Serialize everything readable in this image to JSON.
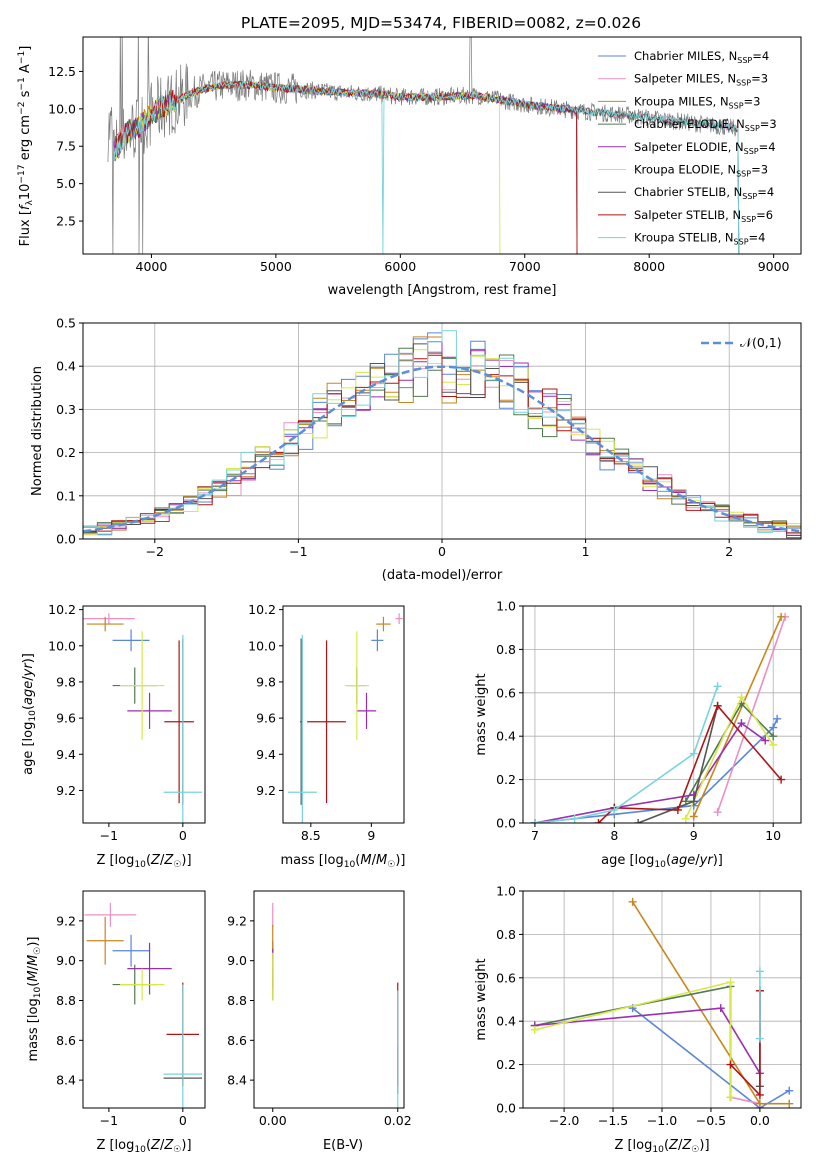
{
  "figure": {
    "title": "PLATE=2095, MJD=53474, FIBERID=0082, z=0.026"
  },
  "models": [
    {
      "name": "Chabrier MILES, N",
      "sub": "SSP",
      "suffix": "=4",
      "color": "#5a86d6"
    },
    {
      "name": "Salpeter MILES, N",
      "sub": "SSP",
      "suffix": "=3",
      "color": "#e98fc6"
    },
    {
      "name": "Kroupa MILES, N",
      "sub": "SSP",
      "suffix": "=3",
      "color": "#c8861c"
    },
    {
      "name": "Chabrier ELODIE, N",
      "sub": "SSP",
      "suffix": "=3",
      "color": "#4f7a4f"
    },
    {
      "name": "Salpeter ELODIE, N",
      "sub": "SSP",
      "suffix": "=4",
      "color": "#9a2fb0"
    },
    {
      "name": "Kroupa ELODIE, N",
      "sub": "SSP",
      "suffix": "=3",
      "color": "#d8e84a"
    },
    {
      "name": "Chabrier STELIB, N",
      "sub": "SSP",
      "suffix": "=4",
      "color": "#555555"
    },
    {
      "name": "Salpeter STELIB, N",
      "sub": "SSP",
      "suffix": "=6",
      "color": "#b01515"
    },
    {
      "name": "Kroupa STELIB, N",
      "sub": "SSP",
      "suffix": "=4",
      "color": "#79d3dc"
    }
  ],
  "chart_data": [
    {
      "id": "spectrum",
      "type": "line",
      "xlabel": "wavelength [Angstrom, rest frame]",
      "ylabel": "Flux [f_λ 10^-17 erg cm^-2 s^-1 A^-1]",
      "xlim": [
        3450,
        9220
      ],
      "ylim": [
        0.3,
        14.8
      ],
      "xticks": [
        4000,
        5000,
        6000,
        7000,
        8000,
        9000
      ],
      "yticks": [
        2.5,
        5.0,
        7.5,
        10.0,
        12.5
      ],
      "grid": false,
      "legend": "top-right",
      "spectrum_shape": [
        [
          3700,
          7.2
        ],
        [
          3800,
          8.4
        ],
        [
          3900,
          8.8
        ],
        [
          4000,
          9.7
        ],
        [
          4100,
          10.2
        ],
        [
          4200,
          10.6
        ],
        [
          4400,
          11.3
        ],
        [
          4600,
          11.6
        ],
        [
          4800,
          11.6
        ],
        [
          5000,
          11.4
        ],
        [
          5200,
          11.3
        ],
        [
          5500,
          11.1
        ],
        [
          5800,
          11.0
        ],
        [
          6000,
          10.8
        ],
        [
          6300,
          10.8
        ],
        [
          6600,
          10.9
        ],
        [
          7000,
          10.3
        ],
        [
          7400,
          9.9
        ],
        [
          7800,
          9.6
        ],
        [
          8200,
          9.2
        ],
        [
          8600,
          8.8
        ],
        [
          8700,
          8.7
        ]
      ],
      "noisy_continuum_extent": [
        3650,
        8700
      ],
      "model_ends": [
        7420,
        8720,
        7420,
        8720,
        7420,
        6800,
        8720,
        7420,
        8720
      ]
    },
    {
      "id": "residuals",
      "type": "histogram",
      "xlabel": "(data-model)/error",
      "ylabel": "Normed distribution",
      "xlim": [
        -2.5,
        2.5
      ],
      "ylim": [
        0,
        0.5
      ],
      "xticks": [
        -2,
        -1,
        0,
        1,
        2
      ],
      "yticks": [
        0.0,
        0.1,
        0.2,
        0.3,
        0.4,
        0.5
      ],
      "grid": true,
      "bins": 50,
      "reference": {
        "label": "𝒩(0,1)",
        "style": "dashed",
        "color": "#5b8fd6"
      },
      "legend": "top-right"
    },
    {
      "id": "age-vs-Z",
      "type": "errorbar",
      "xlabel": "Z [log10(Z/Z☉)]",
      "ylabel": "age [log10(age/yr)]",
      "xlim": [
        -1.35,
        0.3
      ],
      "ylim": [
        9.02,
        10.22
      ],
      "xticks": [
        -1,
        0
      ],
      "yticks": [
        9.2,
        9.4,
        9.6,
        9.8,
        10.0,
        10.2
      ],
      "points": [
        {
          "model": 0,
          "x": -0.7,
          "xerr": 0.25,
          "y": 10.03,
          "yerr": 0.06
        },
        {
          "model": 1,
          "x": -1.0,
          "xerr": 0.35,
          "y": 10.15,
          "yerr": 0.03
        },
        {
          "model": 2,
          "x": -1.05,
          "xerr": 0.25,
          "y": 10.12,
          "yerr": 0.04
        },
        {
          "model": 3,
          "x": -0.65,
          "xerr": 0.3,
          "y": 9.78,
          "yerr": 0.1
        },
        {
          "model": 4,
          "x": -0.45,
          "xerr": 0.3,
          "y": 9.64,
          "yerr": 0.1
        },
        {
          "model": 5,
          "x": -0.55,
          "xerr": 0.3,
          "y": 9.78,
          "yerr": 0.3
        },
        {
          "model": 6,
          "x": 0.0,
          "xerr": 0.01,
          "y": 9.58,
          "yerr": 0.46
        },
        {
          "model": 7,
          "x": -0.05,
          "xerr": 0.2,
          "y": 9.58,
          "yerr": 0.45
        },
        {
          "model": 8,
          "x": 0.0,
          "xerr": 0.26,
          "y": 9.19,
          "yerr": 0.87
        }
      ]
    },
    {
      "id": "age-vs-mass",
      "type": "errorbar",
      "xlabel": "mass [log10(M/M☉)]",
      "ylabel": "",
      "xlim": [
        8.27,
        9.27
      ],
      "ylim": [
        9.02,
        10.22
      ],
      "xticks": [
        8.5,
        9.0
      ],
      "yticks": [
        9.2,
        9.4,
        9.6,
        9.8,
        10.0,
        10.2
      ],
      "points": [
        {
          "model": 0,
          "x": 9.05,
          "xerr": 0.05,
          "y": 10.03,
          "yerr": 0.06
        },
        {
          "model": 1,
          "x": 9.23,
          "xerr": 0.03,
          "y": 10.15,
          "yerr": 0.03
        },
        {
          "model": 2,
          "x": 9.1,
          "xerr": 0.06,
          "y": 10.12,
          "yerr": 0.04
        },
        {
          "model": 3,
          "x": 8.88,
          "xerr": 0.08,
          "y": 9.78,
          "yerr": 0.1
        },
        {
          "model": 4,
          "x": 8.96,
          "xerr": 0.08,
          "y": 9.64,
          "yerr": 0.1
        },
        {
          "model": 5,
          "x": 8.88,
          "xerr": 0.1,
          "y": 9.78,
          "yerr": 0.3
        },
        {
          "model": 6,
          "x": 8.42,
          "xerr": 0.01,
          "y": 9.58,
          "yerr": 0.46
        },
        {
          "model": 7,
          "x": 8.63,
          "xerr": 0.16,
          "y": 9.58,
          "yerr": 0.45
        },
        {
          "model": 8,
          "x": 8.43,
          "xerr": 0.12,
          "y": 9.19,
          "yerr": 0.87
        }
      ]
    },
    {
      "id": "weight-vs-age",
      "type": "line",
      "xlabel": "age [log10(age/yr)]",
      "ylabel": "mass weight",
      "xlim": [
        6.85,
        10.35
      ],
      "ylim": [
        0,
        1.0
      ],
      "xticks": [
        7,
        8,
        9,
        10
      ],
      "yticks": [
        0.0,
        0.2,
        0.4,
        0.6,
        0.8,
        1.0
      ],
      "grid": true,
      "series": [
        {
          "model": 0,
          "x": [
            7.0,
            8.0,
            9.0,
            10.0,
            10.05
          ],
          "y": [
            0.0,
            0.04,
            0.08,
            0.44,
            0.48
          ]
        },
        {
          "model": 1,
          "x": [
            9.3,
            10.15
          ],
          "y": [
            0.05,
            0.95
          ]
        },
        {
          "model": 2,
          "x": [
            9.0,
            10.1
          ],
          "y": [
            0.03,
            0.95
          ]
        },
        {
          "model": 3,
          "x": [
            8.9,
            9.6,
            10.0
          ],
          "y": [
            0.1,
            0.55,
            0.4
          ]
        },
        {
          "model": 4,
          "x": [
            7.0,
            8.0,
            9.0,
            9.6,
            9.9
          ],
          "y": [
            0.0,
            0.07,
            0.13,
            0.46,
            0.38
          ]
        },
        {
          "model": 5,
          "x": [
            8.9,
            9.6,
            10.0
          ],
          "y": [
            0.02,
            0.58,
            0.36
          ]
        },
        {
          "model": 6,
          "x": [
            8.3,
            9.0,
            9.3
          ],
          "y": [
            0.0,
            0.1,
            0.54
          ]
        },
        {
          "model": 7,
          "x": [
            7.8,
            8.0,
            8.8,
            9.3,
            10.1
          ],
          "y": [
            0.0,
            0.07,
            0.06,
            0.54,
            0.2
          ]
        },
        {
          "model": 8,
          "x": [
            7.0,
            7.5,
            8.0,
            9.0,
            9.3
          ],
          "y": [
            0.0,
            0.02,
            0.06,
            0.32,
            0.63
          ]
        }
      ]
    },
    {
      "id": "mass-vs-Z",
      "type": "errorbar",
      "xlabel": "Z [log10(Z/Z☉)]",
      "ylabel": "mass [log10(M/M☉)]",
      "xlim": [
        -1.35,
        0.3
      ],
      "ylim": [
        8.26,
        9.35
      ],
      "xticks": [
        -1,
        0
      ],
      "yticks": [
        8.4,
        8.6,
        8.8,
        9.0,
        9.2
      ],
      "points": [
        {
          "model": 0,
          "x": -0.7,
          "xerr": 0.25,
          "y": 9.05,
          "yerr": 0.08
        },
        {
          "model": 1,
          "x": -0.98,
          "xerr": 0.35,
          "y": 9.23,
          "yerr": 0.06
        },
        {
          "model": 2,
          "x": -1.05,
          "xerr": 0.25,
          "y": 9.1,
          "yerr": 0.12
        },
        {
          "model": 3,
          "x": -0.65,
          "xerr": 0.3,
          "y": 8.88,
          "yerr": 0.1
        },
        {
          "model": 4,
          "x": -0.45,
          "xerr": 0.3,
          "y": 8.96,
          "yerr": 0.13
        },
        {
          "model": 5,
          "x": -0.55,
          "xerr": 0.3,
          "y": 8.88,
          "yerr": 0.08
        },
        {
          "model": 6,
          "x": 0.0,
          "xerr": 0.26,
          "y": 8.41,
          "yerr": 0.01
        },
        {
          "model": 7,
          "x": 0.0,
          "xerr": 0.22,
          "y": 8.63,
          "yerr": 0.26
        },
        {
          "model": 8,
          "x": 0.0,
          "xerr": 0.26,
          "y": 8.43,
          "yerr": 0.45
        }
      ]
    },
    {
      "id": "mass-vs-EBV",
      "type": "errorbar",
      "xlabel": "E(B-V)",
      "ylabel": "",
      "xlim": [
        -0.003,
        0.021
      ],
      "ylim": [
        8.26,
        9.35
      ],
      "xticks": [
        0.0,
        0.02
      ],
      "xtick_labels": [
        "0.00",
        "0.02"
      ],
      "yticks": [
        8.4,
        8.6,
        8.8,
        9.0,
        9.2
      ],
      "points": [
        {
          "model": 0,
          "x": 0.0,
          "xerr": 0,
          "y": 9.05,
          "yerr": 0.05
        },
        {
          "model": 1,
          "x": 0.0,
          "xerr": 0,
          "y": 9.23,
          "yerr": 0.06
        },
        {
          "model": 2,
          "x": 0.0,
          "xerr": 0,
          "y": 9.1,
          "yerr": 0.08
        },
        {
          "model": 3,
          "x": 0.0,
          "xerr": 0,
          "y": 8.88,
          "yerr": 0.08
        },
        {
          "model": 4,
          "x": 0.0,
          "xerr": 0,
          "y": 8.96,
          "yerr": 0.1
        },
        {
          "model": 5,
          "x": 0.0,
          "xerr": 0,
          "y": 8.92,
          "yerr": 0.12
        },
        {
          "model": 6,
          "x": 0.02,
          "xerr": 0,
          "y": 8.45,
          "yerr": 0.12
        },
        {
          "model": 7,
          "x": 0.02,
          "xerr": 0,
          "y": 8.63,
          "yerr": 0.26
        },
        {
          "model": 8,
          "x": 0.02,
          "xerr": 0,
          "y": 8.55,
          "yerr": 0.3
        }
      ]
    },
    {
      "id": "weight-vs-Z",
      "type": "line",
      "xlabel": "Z [log10(Z/Z☉)]",
      "ylabel": "mass weight",
      "xlim": [
        -2.42,
        0.42
      ],
      "ylim": [
        0,
        1.0
      ],
      "xticks": [
        -2.0,
        -1.5,
        -1.0,
        -0.5,
        0.0
      ],
      "xtick_labels": [
        "−2.0",
        "−1.5",
        "−1.0",
        "−0.5",
        "0.0"
      ],
      "yticks": [
        0.0,
        0.2,
        0.4,
        0.6,
        0.8,
        1.0
      ],
      "grid": true,
      "series": [
        {
          "model": 0,
          "x": [
            -1.3,
            0.0,
            0.3
          ],
          "y": [
            0.46,
            0.0,
            0.08
          ]
        },
        {
          "model": 1,
          "x": [
            -0.3,
            0.0
          ],
          "y": [
            0.05,
            0.02
          ]
        },
        {
          "model": 2,
          "x": [
            -1.3,
            0.0,
            0.3
          ],
          "y": [
            0.95,
            0.02,
            0.02
          ]
        },
        {
          "model": 3,
          "x": [
            -2.3,
            -0.3,
            -0.3
          ],
          "y": [
            0.38,
            0.56,
            0.05
          ]
        },
        {
          "model": 4,
          "x": [
            -2.3,
            -0.4,
            0.0
          ],
          "y": [
            0.38,
            0.46,
            0.16
          ]
        },
        {
          "model": 5,
          "x": [
            -2.3,
            -0.3,
            -0.3
          ],
          "y": [
            0.36,
            0.58,
            0.05
          ]
        },
        {
          "model": 6,
          "x": [
            0.0,
            0.0
          ],
          "y": [
            0.54,
            0.1
          ]
        },
        {
          "model": 7,
          "x": [
            -0.3,
            0.0,
            0.0
          ],
          "y": [
            0.2,
            0.06,
            0.54
          ]
        },
        {
          "model": 8,
          "x": [
            0.0,
            0.0
          ],
          "y": [
            0.63,
            0.32
          ]
        }
      ]
    }
  ]
}
